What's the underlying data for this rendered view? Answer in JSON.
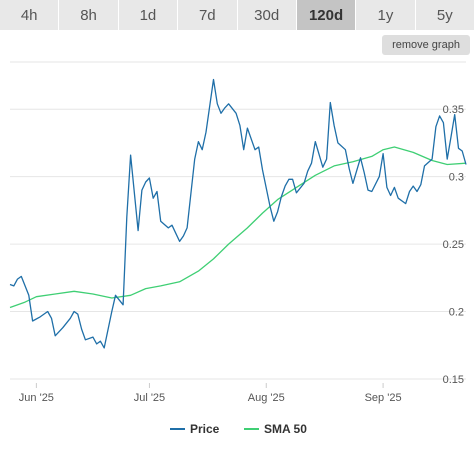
{
  "tabs": [
    {
      "label": "4h",
      "active": false
    },
    {
      "label": "8h",
      "active": false
    },
    {
      "label": "1d",
      "active": false
    },
    {
      "label": "7d",
      "active": false
    },
    {
      "label": "30d",
      "active": false
    },
    {
      "label": "120d",
      "active": true
    },
    {
      "label": "1y",
      "active": false
    },
    {
      "label": "5y",
      "active": false
    }
  ],
  "remove_graph_label": "remove graph",
  "colors": {
    "price": "#1f6fa8",
    "sma": "#3fcf74",
    "grid": "#e6e6e6"
  },
  "chart_data": {
    "type": "line",
    "title": "",
    "xlabel": "",
    "ylabel": "",
    "ylim": [
      0.147,
      0.385
    ],
    "x_range": [
      "2025-05-25",
      "2025-09-23"
    ],
    "yticks": [
      0.15,
      0.2,
      0.25,
      0.3,
      0.35
    ],
    "ytick_labels": [
      "0.15",
      "0.2",
      "0.25",
      "0.3",
      "0.35"
    ],
    "xticks": [
      {
        "date": "2025-06-01",
        "label": "Jun '25"
      },
      {
        "date": "2025-07-01",
        "label": "Jul '25"
      },
      {
        "date": "2025-08-01",
        "label": "Aug '25"
      },
      {
        "date": "2025-09-01",
        "label": "Sep '25"
      }
    ],
    "grid": true,
    "legend_position": "bottom-center",
    "series": [
      {
        "name": "Price",
        "points": [
          [
            "2025-05-25",
            0.22
          ],
          [
            "2025-05-26",
            0.219
          ],
          [
            "2025-05-27",
            0.224
          ],
          [
            "2025-05-28",
            0.226
          ],
          [
            "2025-05-30",
            0.212
          ],
          [
            "2025-05-31",
            0.193
          ],
          [
            "2025-06-02",
            0.196
          ],
          [
            "2025-06-04",
            0.2
          ],
          [
            "2025-06-05",
            0.195
          ],
          [
            "2025-06-06",
            0.182
          ],
          [
            "2025-06-08",
            0.188
          ],
          [
            "2025-06-10",
            0.195
          ],
          [
            "2025-06-11",
            0.2
          ],
          [
            "2025-06-12",
            0.198
          ],
          [
            "2025-06-13",
            0.187
          ],
          [
            "2025-06-14",
            0.179
          ],
          [
            "2025-06-16",
            0.181
          ],
          [
            "2025-06-17",
            0.176
          ],
          [
            "2025-06-18",
            0.178
          ],
          [
            "2025-06-19",
            0.173
          ],
          [
            "2025-06-21",
            0.2
          ],
          [
            "2025-06-22",
            0.212
          ],
          [
            "2025-06-24",
            0.205
          ],
          [
            "2025-06-25",
            0.27
          ],
          [
            "2025-06-26",
            0.316
          ],
          [
            "2025-06-28",
            0.26
          ],
          [
            "2025-06-29",
            0.29
          ],
          [
            "2025-06-30",
            0.296
          ],
          [
            "2025-07-01",
            0.299
          ],
          [
            "2025-07-02",
            0.284
          ],
          [
            "2025-07-03",
            0.289
          ],
          [
            "2025-07-04",
            0.267
          ],
          [
            "2025-07-06",
            0.262
          ],
          [
            "2025-07-07",
            0.264
          ],
          [
            "2025-07-08",
            0.258
          ],
          [
            "2025-07-09",
            0.252
          ],
          [
            "2025-07-10",
            0.256
          ],
          [
            "2025-07-11",
            0.262
          ],
          [
            "2025-07-13",
            0.313
          ],
          [
            "2025-07-14",
            0.326
          ],
          [
            "2025-07-15",
            0.32
          ],
          [
            "2025-07-16",
            0.333
          ],
          [
            "2025-07-18",
            0.372
          ],
          [
            "2025-07-19",
            0.354
          ],
          [
            "2025-07-20",
            0.347
          ],
          [
            "2025-07-21",
            0.351
          ],
          [
            "2025-07-22",
            0.354
          ],
          [
            "2025-07-24",
            0.347
          ],
          [
            "2025-07-25",
            0.338
          ],
          [
            "2025-07-26",
            0.32
          ],
          [
            "2025-07-27",
            0.336
          ],
          [
            "2025-07-29",
            0.32
          ],
          [
            "2025-07-30",
            0.322
          ],
          [
            "2025-07-31",
            0.305
          ],
          [
            "2025-08-02",
            0.278
          ],
          [
            "2025-08-03",
            0.267
          ],
          [
            "2025-08-04",
            0.274
          ],
          [
            "2025-08-05",
            0.285
          ],
          [
            "2025-08-06",
            0.293
          ],
          [
            "2025-08-07",
            0.298
          ],
          [
            "2025-08-08",
            0.298
          ],
          [
            "2025-08-09",
            0.288
          ],
          [
            "2025-08-11",
            0.295
          ],
          [
            "2025-08-12",
            0.304
          ],
          [
            "2025-08-13",
            0.31
          ],
          [
            "2025-08-14",
            0.326
          ],
          [
            "2025-08-16",
            0.307
          ],
          [
            "2025-08-17",
            0.313
          ],
          [
            "2025-08-18",
            0.355
          ],
          [
            "2025-08-19",
            0.338
          ],
          [
            "2025-08-20",
            0.325
          ],
          [
            "2025-08-22",
            0.32
          ],
          [
            "2025-08-23",
            0.306
          ],
          [
            "2025-08-24",
            0.295
          ],
          [
            "2025-08-26",
            0.314
          ],
          [
            "2025-08-27",
            0.303
          ],
          [
            "2025-08-28",
            0.29
          ],
          [
            "2025-08-29",
            0.289
          ],
          [
            "2025-08-31",
            0.3
          ],
          [
            "2025-09-01",
            0.317
          ],
          [
            "2025-09-02",
            0.292
          ],
          [
            "2025-09-03",
            0.286
          ],
          [
            "2025-09-04",
            0.292
          ],
          [
            "2025-09-05",
            0.284
          ],
          [
            "2025-09-07",
            0.28
          ],
          [
            "2025-09-08",
            0.289
          ],
          [
            "2025-09-09",
            0.293
          ],
          [
            "2025-09-10",
            0.289
          ],
          [
            "2025-09-11",
            0.294
          ],
          [
            "2025-09-12",
            0.308
          ],
          [
            "2025-09-14",
            0.313
          ],
          [
            "2025-09-15",
            0.337
          ],
          [
            "2025-09-16",
            0.345
          ],
          [
            "2025-09-17",
            0.34
          ],
          [
            "2025-09-18",
            0.313
          ],
          [
            "2025-09-19",
            0.329
          ],
          [
            "2025-09-20",
            0.346
          ],
          [
            "2025-09-21",
            0.321
          ],
          [
            "2025-09-22",
            0.319
          ],
          [
            "2025-09-23",
            0.309
          ]
        ]
      },
      {
        "name": "SMA 50",
        "points": [
          [
            "2025-05-25",
            0.203
          ],
          [
            "2025-05-29",
            0.207
          ],
          [
            "2025-06-01",
            0.211
          ],
          [
            "2025-06-06",
            0.213
          ],
          [
            "2025-06-11",
            0.215
          ],
          [
            "2025-06-16",
            0.213
          ],
          [
            "2025-06-21",
            0.21
          ],
          [
            "2025-06-26",
            0.212
          ],
          [
            "2025-06-30",
            0.217
          ],
          [
            "2025-07-04",
            0.219
          ],
          [
            "2025-07-09",
            0.222
          ],
          [
            "2025-07-14",
            0.23
          ],
          [
            "2025-07-18",
            0.239
          ],
          [
            "2025-07-22",
            0.25
          ],
          [
            "2025-07-27",
            0.262
          ],
          [
            "2025-07-31",
            0.273
          ],
          [
            "2025-08-04",
            0.283
          ],
          [
            "2025-08-09",
            0.292
          ],
          [
            "2025-08-14",
            0.301
          ],
          [
            "2025-08-19",
            0.308
          ],
          [
            "2025-08-24",
            0.311
          ],
          [
            "2025-08-29",
            0.315
          ],
          [
            "2025-09-01",
            0.32
          ],
          [
            "2025-09-04",
            0.322
          ],
          [
            "2025-09-09",
            0.318
          ],
          [
            "2025-09-14",
            0.312
          ],
          [
            "2025-09-18",
            0.309
          ],
          [
            "2025-09-23",
            0.31
          ]
        ]
      }
    ]
  }
}
